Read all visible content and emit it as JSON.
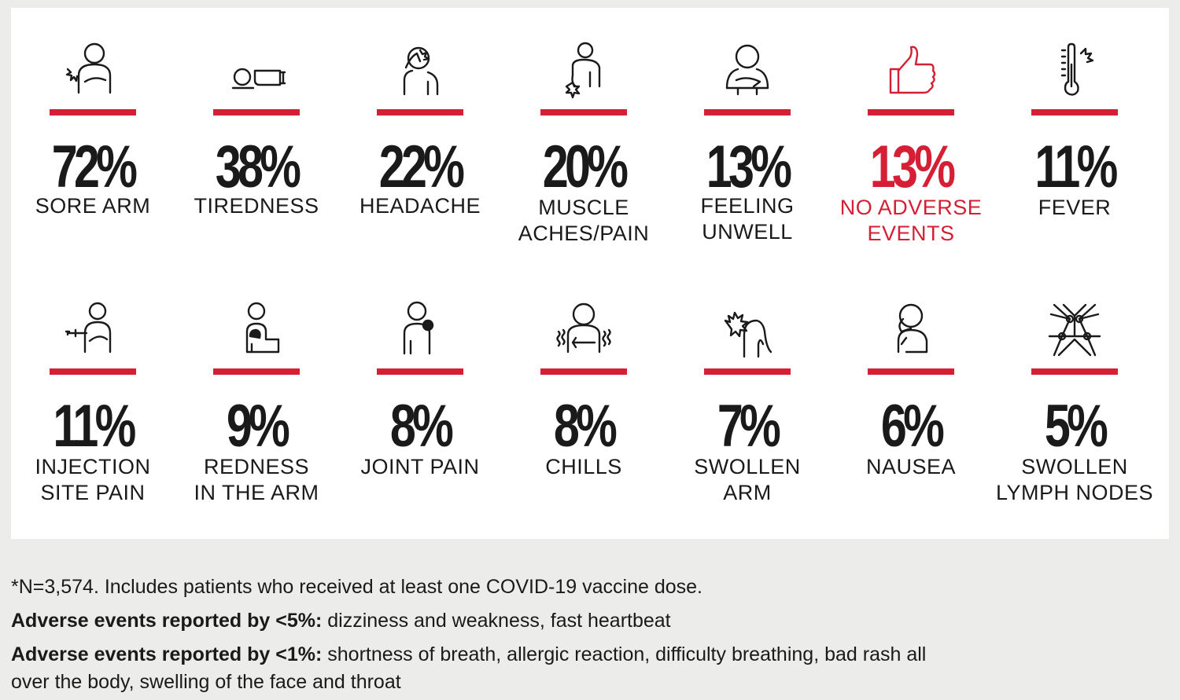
{
  "accent_color": "#d51f35",
  "row1": [
    {
      "percent": "72%",
      "label_line1": "SORE ARM",
      "label_line2": "",
      "icon": "sore-arm-icon"
    },
    {
      "percent": "38%",
      "label_line1": "TIREDNESS",
      "label_line2": "",
      "icon": "tiredness-icon"
    },
    {
      "percent": "22%",
      "label_line1": "HEADACHE",
      "label_line2": "",
      "icon": "headache-icon"
    },
    {
      "percent": "20%",
      "label_line1": "MUSCLE",
      "label_line2": "ACHES/PAIN",
      "icon": "muscle-ache-icon"
    },
    {
      "percent": "13%",
      "label_line1": "FEELING",
      "label_line2": "UNWELL",
      "icon": "feeling-unwell-icon"
    },
    {
      "percent": "13%",
      "label_line1": "NO ADVERSE",
      "label_line2": "EVENTS",
      "icon": "thumbs-up-icon"
    },
    {
      "percent": "11%",
      "label_line1": "FEVER",
      "label_line2": "",
      "icon": "thermometer-icon"
    }
  ],
  "row2": [
    {
      "percent": "11%",
      "label_line1": "INJECTION",
      "label_line2": "SITE PAIN",
      "icon": "injection-icon"
    },
    {
      "percent": "9%",
      "label_line1": "REDNESS",
      "label_line2": "IN THE ARM",
      "icon": "redness-arm-icon"
    },
    {
      "percent": "8%",
      "label_line1": "JOINT PAIN",
      "label_line2": "",
      "icon": "joint-pain-icon"
    },
    {
      "percent": "8%",
      "label_line1": "CHILLS",
      "label_line2": "",
      "icon": "chills-icon"
    },
    {
      "percent": "7%",
      "label_line1": "SWOLLEN",
      "label_line2": "ARM",
      "icon": "swollen-arm-icon"
    },
    {
      "percent": "6%",
      "label_line1": "NAUSEA",
      "label_line2": "",
      "icon": "nausea-icon"
    },
    {
      "percent": "5%",
      "label_line1": "SWOLLEN",
      "label_line2": "LYMPH NODES",
      "icon": "lymph-nodes-icon"
    }
  ],
  "notes": {
    "footnote": "*N=3,574. Includes patients who received at least one COVID-19 vaccine dose.",
    "under5_label": "Adverse events reported by <5%:",
    "under5_text": " dizziness and weakness, fast heartbeat",
    "under1_label": "Adverse events reported by <1%:",
    "under1_text": " shortness of breath, allergic reaction, difficulty breathing, bad rash all over the body, swelling of the face and throat"
  }
}
